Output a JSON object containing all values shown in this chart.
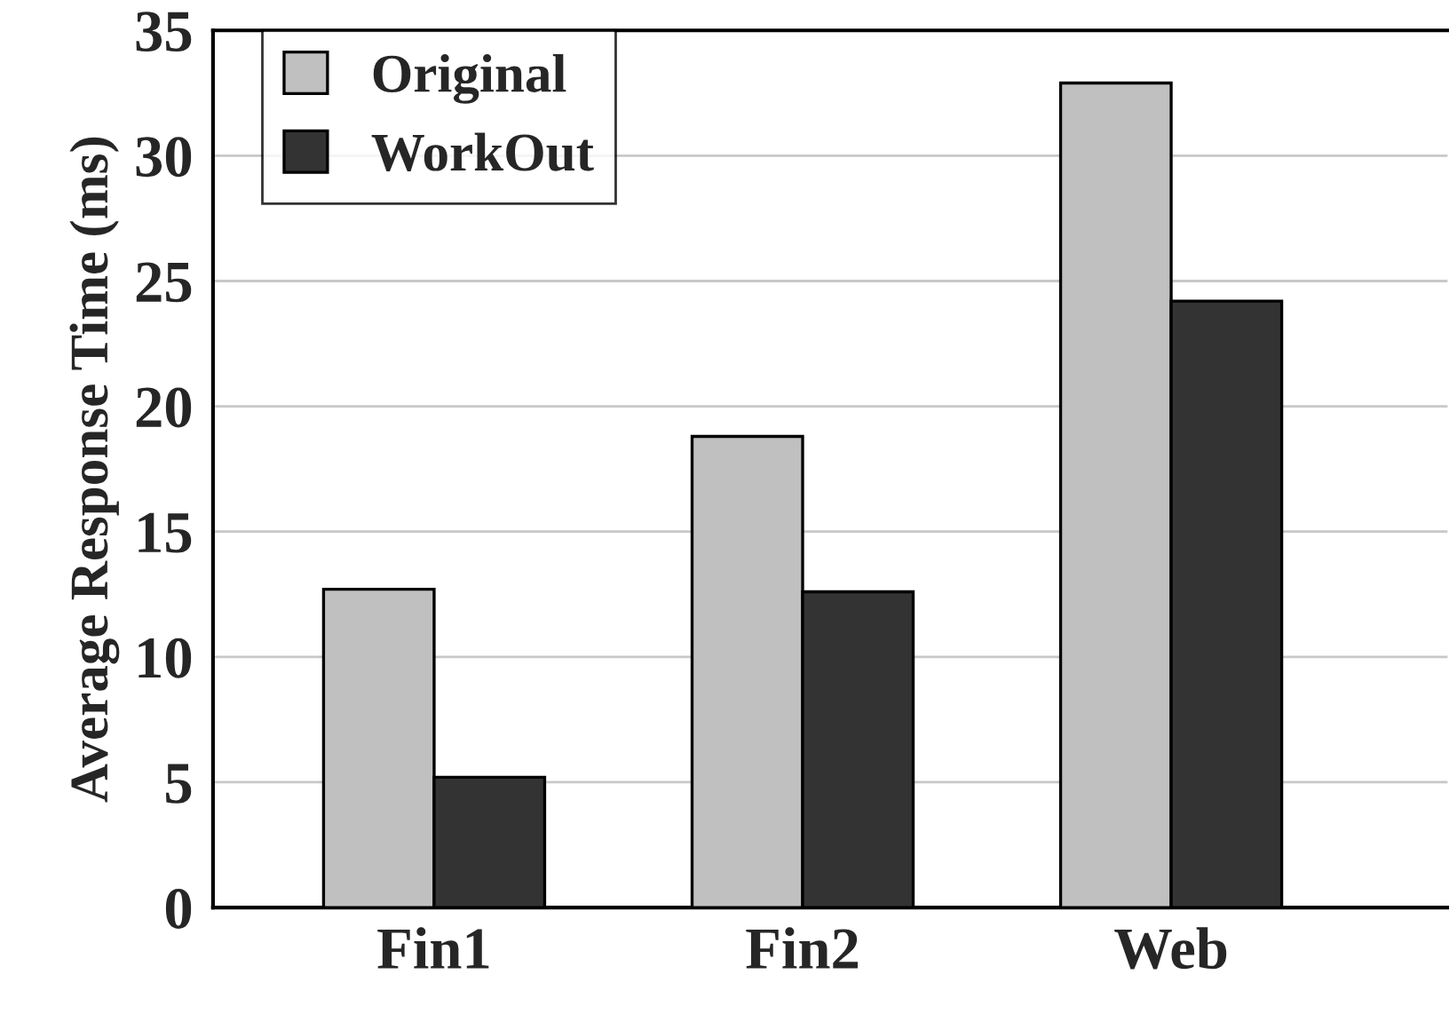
{
  "chart_data": {
    "type": "bar",
    "ylabel": "Average Response Time (ms)",
    "categories": [
      "Fin1",
      "Fin2",
      "Web"
    ],
    "series": [
      {
        "name": "Original",
        "color": "#c0c0c0",
        "values": [
          12.7,
          18.8,
          32.9
        ]
      },
      {
        "name": "WorkOut",
        "color": "#333333",
        "values": [
          5.2,
          12.6,
          24.2
        ]
      }
    ],
    "ylim": [
      0,
      35
    ],
    "yticks": [
      0,
      5,
      10,
      15,
      20,
      25,
      30,
      35
    ],
    "grid": "y",
    "legend": "top left"
  }
}
